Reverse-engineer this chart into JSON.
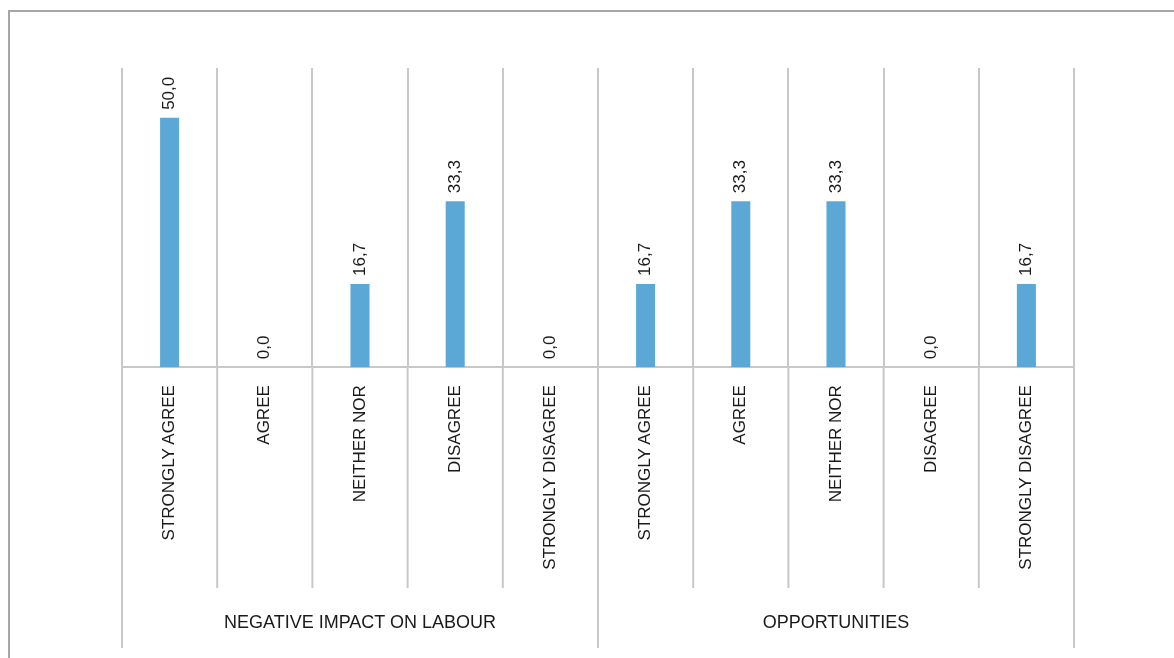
{
  "chart_data": {
    "type": "bar",
    "categories": [
      "STRONGLY AGREE",
      "AGREE",
      "NEITHER NOR",
      "DISAGREE",
      "STRONGLY DISAGREE",
      "STRONGLY AGREE",
      "AGREE",
      "NEITHER NOR",
      "DISAGREE",
      "STRONGLY DISAGREE"
    ],
    "values": [
      50.0,
      0.0,
      16.7,
      33.3,
      0.0,
      16.7,
      33.3,
      33.3,
      0.0,
      16.7
    ],
    "value_labels": [
      "50,0",
      "0,0",
      "16,7",
      "33,3",
      "0,0",
      "16,7",
      "33,3",
      "33,3",
      "0,0",
      "16,7"
    ],
    "color": "#5ba8d6",
    "ylim": [
      0,
      60
    ],
    "tick_labels": "x",
    "grid": "x",
    "legend": false,
    "annotations": [
      "NEGATIVE IMPACT ON LABOUR",
      "OPPORTUNITIES"
    ]
  }
}
